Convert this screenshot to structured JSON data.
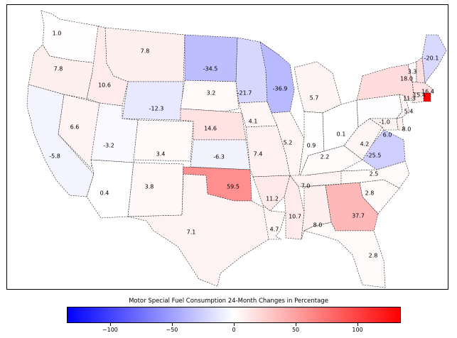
{
  "colorbar": {
    "title": "Motor Special Fuel Consumption 24-Month Changes in Percentage",
    "min": -135,
    "max": 135,
    "ticks": [
      {
        "value": -100,
        "label": "−100"
      },
      {
        "value": -50,
        "label": "−50"
      },
      {
        "value": 0,
        "label": "0"
      },
      {
        "value": 50,
        "label": "50"
      },
      {
        "value": 100,
        "label": "100"
      }
    ]
  },
  "states": [
    {
      "id": "WA",
      "value": 1.0
    },
    {
      "id": "OR",
      "value": 7.8
    },
    {
      "id": "CA",
      "value": -5.8
    },
    {
      "id": "NV",
      "value": 6.6
    },
    {
      "id": "ID",
      "value": 10.6
    },
    {
      "id": "MT",
      "value": 7.8
    },
    {
      "id": "WY",
      "value": -12.3
    },
    {
      "id": "UT",
      "value": -3.2
    },
    {
      "id": "AZ",
      "value": 0.4
    },
    {
      "id": "CO",
      "value": 3.4
    },
    {
      "id": "NM",
      "value": 3.8
    },
    {
      "id": "ND",
      "value": -34.5
    },
    {
      "id": "SD",
      "value": 3.2
    },
    {
      "id": "NE",
      "value": 14.6
    },
    {
      "id": "KS",
      "value": -6.3
    },
    {
      "id": "OK",
      "value": 59.5
    },
    {
      "id": "TX",
      "value": 7.1
    },
    {
      "id": "MN",
      "value": -21.7
    },
    {
      "id": "IA",
      "value": 4.1
    },
    {
      "id": "MO",
      "value": 7.4
    },
    {
      "id": "AR",
      "value": 11.2
    },
    {
      "id": "LA",
      "value": 4.7
    },
    {
      "id": "WI",
      "value": -36.9
    },
    {
      "id": "IL",
      "value": 5.2
    },
    {
      "id": "MI",
      "value": 5.7
    },
    {
      "id": "IN",
      "value": 0.9
    },
    {
      "id": "OH",
      "value": 0.1
    },
    {
      "id": "KY",
      "value": 2.2
    },
    {
      "id": "TN",
      "value": 7.0
    },
    {
      "id": "MS",
      "value": 10.7
    },
    {
      "id": "AL",
      "value": 8.0
    },
    {
      "id": "GA",
      "value": 37.7
    },
    {
      "id": "FL",
      "value": 2.8
    },
    {
      "id": "SC",
      "value": 2.8
    },
    {
      "id": "NC",
      "value": 2.5
    },
    {
      "id": "VA",
      "value": -25.5
    },
    {
      "id": "WV",
      "value": 4.2
    },
    {
      "id": "PA",
      "value": -1.0
    },
    {
      "id": "NY",
      "value": 18.0
    },
    {
      "id": "VT",
      "value": 3.3
    },
    {
      "id": "ME",
      "value": -20.1
    },
    {
      "id": "NH",
      "value": 16.4
    },
    {
      "id": "MA",
      "value": 15.4
    },
    {
      "id": "RI",
      "value": 135
    },
    {
      "id": "CT",
      "value": 11.3
    },
    {
      "id": "NJ",
      "value": 5.4
    },
    {
      "id": "DE",
      "value": 8.0
    },
    {
      "id": "MD",
      "value": 6.0
    }
  ]
}
